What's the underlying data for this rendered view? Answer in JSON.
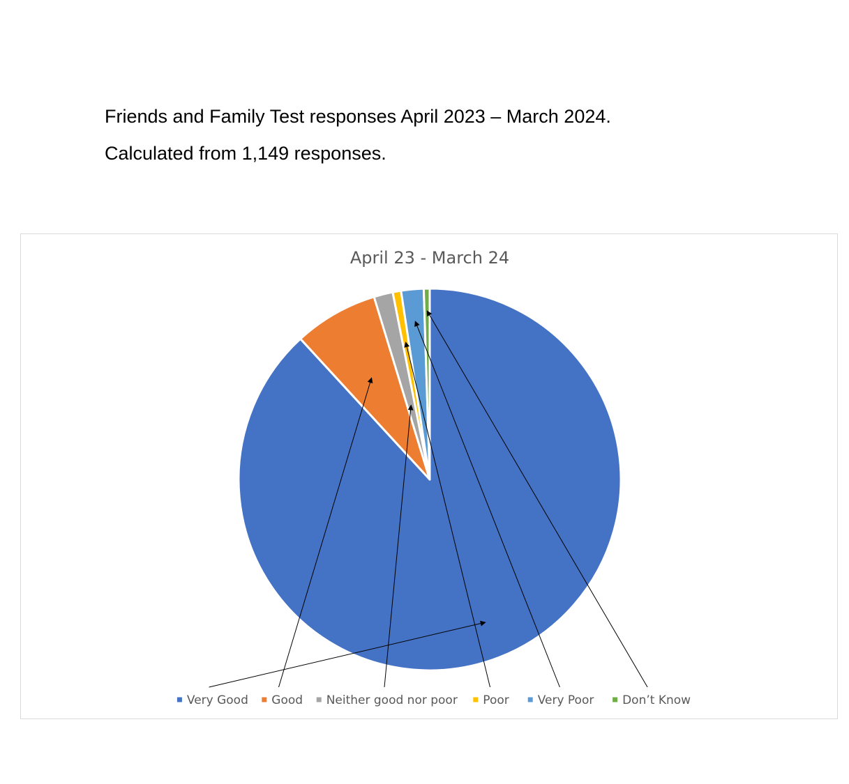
{
  "header": {
    "line1": "Friends and Family Test responses April 2023 – March 2024.",
    "line2": "Calculated from 1,149 responses."
  },
  "chart_data": {
    "type": "pie",
    "title": "April 23 - March 24",
    "categories": [
      "Very Good",
      "Good",
      "Neither good nor poor",
      "Poor",
      "Very Poor",
      "Don’t Know"
    ],
    "values": [
      88.0,
      7.1,
      1.6,
      0.7,
      1.9,
      0.5
    ],
    "colors": [
      "#4472C4",
      "#ED7D31",
      "#A5A5A5",
      "#FFC000",
      "#5B9BD5",
      "#70AD47"
    ],
    "legend_position": "bottom"
  }
}
